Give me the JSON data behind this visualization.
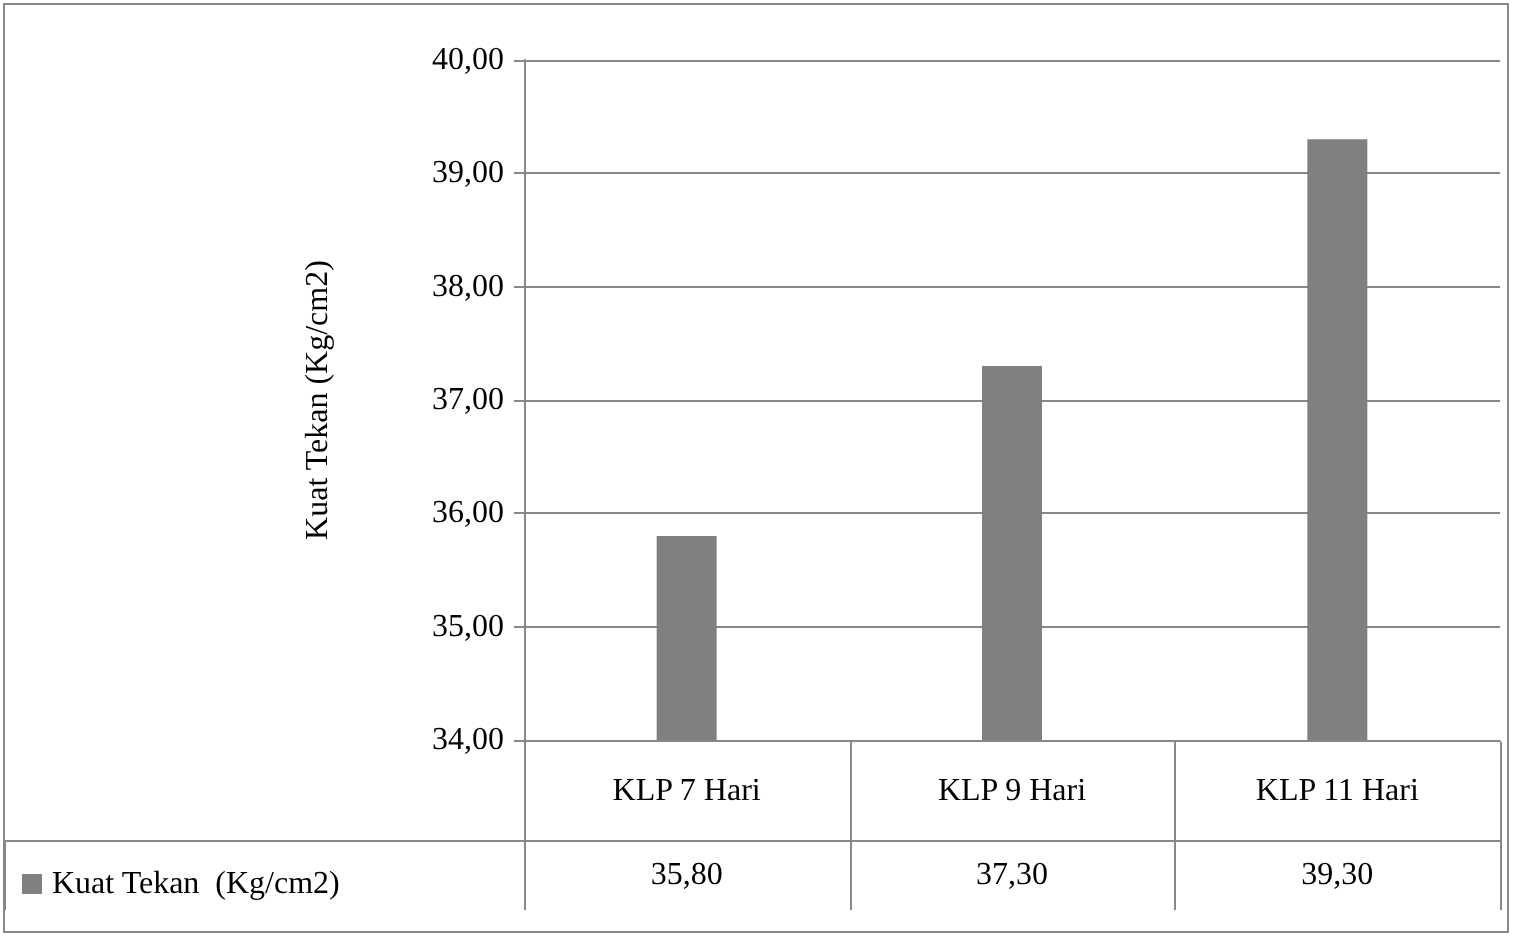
{
  "chart_data": {
    "type": "bar",
    "ylabel": "Kuat Tekan (Kg/cm2)",
    "categories": [
      "KLP 7 Hari",
      "KLP 9 Hari",
      "KLP 11 Hari"
    ],
    "series": [
      {
        "name": "Kuat Tekan  (Kg/cm2)",
        "color": "#808080",
        "values": [
          35.8,
          37.3,
          39.3
        ],
        "value_labels": [
          "35,80",
          "37,30",
          "39,30"
        ]
      }
    ],
    "ylim": [
      34,
      40
    ],
    "yticks": [
      {
        "value": 34,
        "label": "34,00"
      },
      {
        "value": 35,
        "label": "35,00"
      },
      {
        "value": 36,
        "label": "36,00"
      },
      {
        "value": 37,
        "label": "37,00"
      },
      {
        "value": 38,
        "label": "38,00"
      },
      {
        "value": 39,
        "label": "39,00"
      },
      {
        "value": 40,
        "label": "40,00"
      }
    ],
    "grid": "y",
    "legend": "bottom left"
  }
}
